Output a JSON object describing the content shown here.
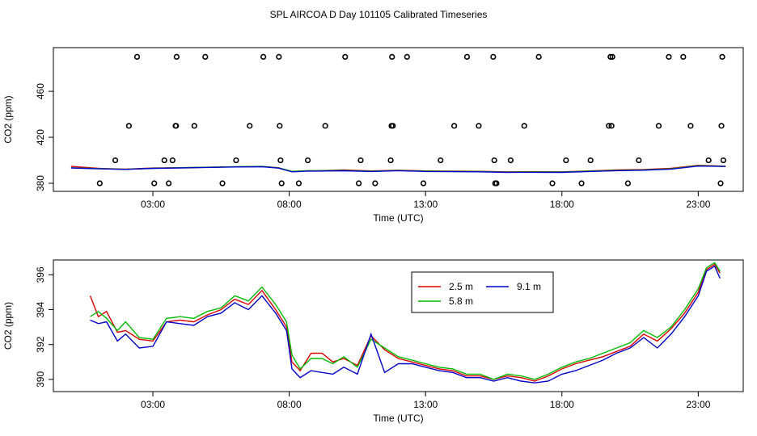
{
  "title": "SPL AIRCOA D  Day 101105  Calibrated Timeseries",
  "colors": {
    "red": "#dd0000",
    "green": "#00bb00",
    "blue": "#0000cc",
    "axis": "#000000"
  },
  "chart_data": [
    {
      "type": "scatter",
      "xlabel": "Time (UTC)",
      "ylabel": "CO2 (ppm)",
      "x_ticks": [
        3,
        8,
        13,
        18,
        23
      ],
      "x_tick_labels": [
        "03:00",
        "08:00",
        "13:00",
        "18:00",
        "23:00"
      ],
      "y_ticks": [
        380,
        420,
        460
      ],
      "y_tick_labels": [
        "380",
        "420",
        "460"
      ],
      "xlim": [
        -0.65,
        24.65
      ],
      "ylim": [
        373,
        498
      ],
      "reference_points": {
        "marker": "open-circle",
        "x_hours": [
          1.05,
          1.62,
          2.12,
          2.42,
          3.05,
          3.42,
          3.58,
          3.72,
          3.83,
          3.85,
          3.87,
          4.52,
          4.92,
          5.55,
          6.05,
          6.55,
          7.05,
          7.62,
          7.65,
          7.68,
          7.72,
          8.35,
          8.68,
          9.32,
          10.05,
          10.55,
          10.62,
          11.15,
          11.72,
          11.75,
          11.77,
          11.8,
          12.32,
          12.92,
          13.55,
          14.05,
          14.52,
          14.95,
          15.48,
          15.52,
          15.55,
          15.6,
          16.12,
          16.62,
          17.15,
          17.65,
          18.15,
          18.72,
          19.05,
          19.72,
          19.78,
          19.82,
          19.85,
          20.42,
          20.82,
          21.55,
          21.92,
          22.45,
          22.72,
          23.38,
          23.82,
          23.85,
          23.88,
          23.92
        ],
        "y_ppm": [
          380,
          400,
          430,
          490,
          380,
          400,
          380,
          400,
          430,
          430,
          490,
          430,
          490,
          380,
          400,
          430,
          490,
          490,
          430,
          400,
          380,
          380,
          400,
          430,
          490,
          380,
          400,
          380,
          400,
          430,
          490,
          430,
          490,
          380,
          400,
          430,
          490,
          430,
          490,
          400,
          380,
          380,
          400,
          430,
          490,
          380,
          400,
          380,
          400,
          430,
          490,
          430,
          490,
          380,
          400,
          430,
          490,
          490,
          430,
          400,
          380,
          430,
          490,
          400
        ]
      },
      "series": [
        {
          "color": "red",
          "x": [
            0,
            1,
            2,
            3,
            4,
            5,
            6,
            7,
            7.6,
            8.1,
            8.7,
            9,
            10,
            11,
            12,
            13,
            14,
            15,
            16,
            17,
            18,
            19,
            20,
            21,
            22,
            23,
            24
          ],
          "y": [
            394.7,
            393.0,
            392.3,
            393.3,
            393.5,
            393.9,
            394.3,
            394.6,
            393.6,
            390.2,
            391.0,
            391.0,
            391.6,
            390.8,
            391.4,
            390.8,
            390.6,
            390.4,
            390.0,
            390.1,
            390.0,
            390.8,
            391.6,
            392.0,
            393.0,
            395.7,
            394.9
          ]
        },
        {
          "color": "green",
          "x": [
            0,
            1,
            2,
            3,
            4,
            5,
            6,
            7,
            7.6,
            8.1,
            8.7,
            9,
            10,
            11,
            12,
            13,
            14,
            15,
            16,
            17,
            18,
            19,
            20,
            21,
            22,
            23,
            24
          ],
          "y": [
            393.5,
            392.8,
            392.2,
            393.1,
            393.6,
            394.0,
            394.5,
            394.7,
            393.4,
            390.4,
            390.9,
            390.9,
            391.2,
            390.5,
            391.1,
            390.6,
            390.3,
            390.2,
            389.7,
            389.9,
            389.8,
            390.6,
            391.2,
            391.6,
            392.6,
            395.3,
            394.8
          ]
        },
        {
          "color": "blue",
          "x": [
            0,
            1,
            2,
            3,
            4,
            5,
            6,
            7,
            7.6,
            8.1,
            8.7,
            9,
            10,
            11,
            12,
            13,
            14,
            15,
            16,
            17,
            18,
            19,
            20,
            21,
            22,
            23,
            24
          ],
          "y": [
            393.4,
            392.6,
            392.1,
            393.0,
            393.4,
            393.8,
            394.2,
            394.4,
            393.2,
            390.0,
            390.6,
            390.6,
            390.9,
            390.3,
            391.0,
            390.3,
            390.1,
            390.0,
            389.5,
            389.6,
            389.5,
            390.3,
            391.0,
            391.4,
            392.4,
            395.0,
            394.6
          ]
        }
      ]
    },
    {
      "type": "line",
      "xlabel": "Time (UTC)",
      "ylabel": "CO2 (ppm)",
      "x_ticks": [
        3,
        8,
        13,
        18,
        23
      ],
      "x_tick_labels": [
        "03:00",
        "08:00",
        "13:00",
        "18:00",
        "23:00"
      ],
      "y_ticks": [
        390,
        392,
        394,
        396
      ],
      "y_tick_labels": [
        "390",
        "392",
        "394",
        "396"
      ],
      "xlim": [
        -0.65,
        24.65
      ],
      "ylim": [
        389.3,
        396.85
      ],
      "legend": {
        "placement": "top-center",
        "entries": [
          {
            "name": "2.5 m",
            "color": "red"
          },
          {
            "name": "9.1 m",
            "color": "blue"
          },
          {
            "name": "5.8 m",
            "color": "green"
          }
        ]
      },
      "series": [
        {
          "name": "2.5 m",
          "color": "red",
          "x": [
            0.7,
            1.0,
            1.3,
            1.7,
            2.0,
            2.5,
            3.0,
            3.5,
            4.0,
            4.5,
            5.0,
            5.5,
            6.0,
            6.5,
            7.0,
            7.5,
            7.9,
            8.1,
            8.4,
            8.8,
            9.2,
            9.6,
            10.0,
            10.5,
            11.0,
            11.5,
            12.0,
            12.5,
            13.0,
            13.5,
            14.0,
            14.5,
            15.0,
            15.5,
            16.0,
            16.5,
            17.0,
            17.5,
            18.0,
            18.5,
            19.0,
            19.5,
            20.0,
            20.5,
            21.0,
            21.5,
            22.0,
            22.5,
            23.0,
            23.3,
            23.6,
            23.8
          ],
          "y": [
            394.8,
            393.6,
            393.9,
            392.7,
            392.8,
            392.3,
            392.2,
            393.3,
            393.4,
            393.3,
            393.7,
            394.0,
            394.6,
            394.3,
            395.1,
            394.0,
            393.0,
            391.0,
            390.5,
            391.5,
            391.5,
            391.0,
            391.2,
            390.8,
            392.5,
            391.7,
            391.2,
            391.0,
            390.8,
            390.6,
            390.5,
            390.2,
            390.2,
            390.0,
            390.2,
            390.1,
            389.9,
            390.2,
            390.6,
            390.9,
            391.1,
            391.3,
            391.6,
            391.9,
            392.6,
            392.2,
            392.9,
            393.8,
            395.0,
            396.3,
            396.6,
            396.1
          ]
        },
        {
          "name": "5.8 m",
          "color": "green",
          "x": [
            0.7,
            1.0,
            1.3,
            1.7,
            2.0,
            2.5,
            3.0,
            3.5,
            4.0,
            4.5,
            5.0,
            5.5,
            6.0,
            6.5,
            7.0,
            7.5,
            7.9,
            8.1,
            8.4,
            8.8,
            9.2,
            9.6,
            10.0,
            10.5,
            11.0,
            11.5,
            12.0,
            12.5,
            13.0,
            13.5,
            14.0,
            14.5,
            15.0,
            15.5,
            16.0,
            16.5,
            17.0,
            17.5,
            18.0,
            18.5,
            19.0,
            19.5,
            20.0,
            20.5,
            21.0,
            21.5,
            22.0,
            22.5,
            23.0,
            23.3,
            23.6,
            23.8
          ],
          "y": [
            393.6,
            393.9,
            393.5,
            392.8,
            393.3,
            392.4,
            392.3,
            393.5,
            393.6,
            393.5,
            393.9,
            394.1,
            394.8,
            394.5,
            395.3,
            394.3,
            393.3,
            391.4,
            390.6,
            391.2,
            391.2,
            390.9,
            391.3,
            390.7,
            392.3,
            391.8,
            391.3,
            391.1,
            390.9,
            390.7,
            390.6,
            390.3,
            390.3,
            390.0,
            390.3,
            390.2,
            390.0,
            390.3,
            390.7,
            391.0,
            391.2,
            391.5,
            391.8,
            392.1,
            392.8,
            392.4,
            393.0,
            394.0,
            395.2,
            396.4,
            396.7,
            396.2
          ]
        },
        {
          "name": "9.1 m",
          "color": "blue",
          "x": [
            0.7,
            1.0,
            1.3,
            1.7,
            2.0,
            2.5,
            3.0,
            3.5,
            4.0,
            4.5,
            5.0,
            5.5,
            6.0,
            6.5,
            7.0,
            7.5,
            7.9,
            8.1,
            8.4,
            8.8,
            9.2,
            9.6,
            10.0,
            10.5,
            11.0,
            11.5,
            12.0,
            12.5,
            13.0,
            13.5,
            14.0,
            14.5,
            15.0,
            15.5,
            16.0,
            16.5,
            17.0,
            17.5,
            18.0,
            18.5,
            19.0,
            19.5,
            20.0,
            20.5,
            21.0,
            21.5,
            22.0,
            22.5,
            23.0,
            23.3,
            23.6,
            23.8
          ],
          "y": [
            393.4,
            393.2,
            393.3,
            392.2,
            392.6,
            391.8,
            391.9,
            393.3,
            393.2,
            393.1,
            393.6,
            393.8,
            394.4,
            394.0,
            394.8,
            393.8,
            392.8,
            390.6,
            390.1,
            390.5,
            390.4,
            390.3,
            390.7,
            390.3,
            392.6,
            390.4,
            390.9,
            390.9,
            390.7,
            390.5,
            390.4,
            390.1,
            390.1,
            389.9,
            390.1,
            389.9,
            389.8,
            389.9,
            390.3,
            390.5,
            390.8,
            391.1,
            391.5,
            391.8,
            392.4,
            391.8,
            392.6,
            393.6,
            394.8,
            396.2,
            396.5,
            395.8
          ]
        }
      ]
    }
  ]
}
